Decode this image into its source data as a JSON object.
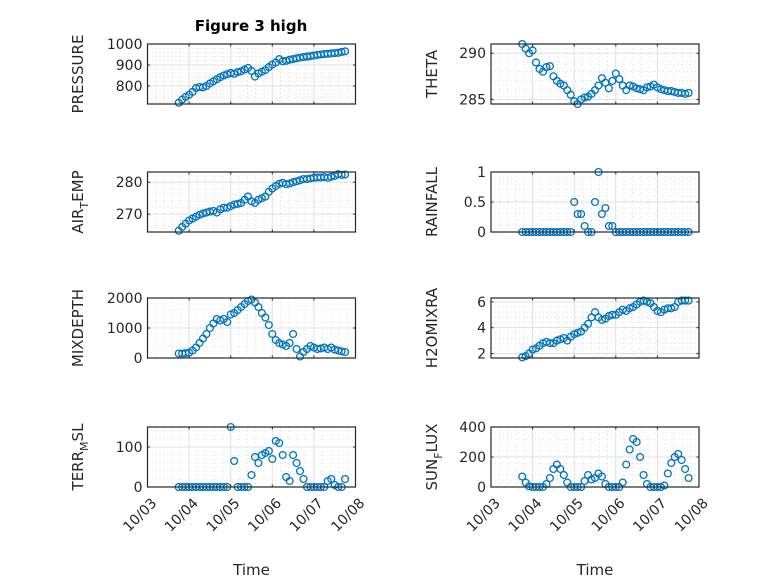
{
  "figure_title": "Figure 3 high",
  "colors": {
    "marker": "#0072BD",
    "axis": "#262626",
    "grid_major": "#dfdfdf",
    "grid_minor": "#c8c8c8"
  },
  "chart_data": [
    {
      "type": "scatter",
      "id": "pressure",
      "ylabel": {
        "main": "PRESSURE",
        "sub": "",
        "rest": ""
      },
      "title": "Figure 3 high",
      "ylim": [
        714,
        1000
      ],
      "yticks": [
        800,
        900,
        1000
      ],
      "ytick_labels": [
        "800",
        "900",
        "1000"
      ],
      "xlabel": "",
      "x_range_days": [
        0.75,
        4.75
      ],
      "values": [
        720,
        735,
        748,
        758,
        772,
        790,
        795,
        793,
        800,
        812,
        822,
        832,
        842,
        850,
        856,
        862,
        858,
        866,
        870,
        878,
        886,
        872,
        845,
        860,
        868,
        876,
        890,
        902,
        912,
        928,
        918,
        920,
        925,
        928,
        932,
        935,
        938,
        940,
        942,
        945,
        948,
        950,
        952,
        953,
        955,
        957,
        958,
        962,
        965
      ]
    },
    {
      "type": "scatter",
      "id": "theta",
      "ylabel": {
        "main": "THETA",
        "sub": "",
        "rest": ""
      },
      "ylim": [
        284.5,
        291
      ],
      "yticks": [
        285,
        290
      ],
      "ytick_labels": [
        "285",
        "290"
      ],
      "xlabel": "",
      "x_range_days": [
        0.75,
        4.75
      ],
      "values": [
        291,
        290.5,
        290,
        290.3,
        289,
        288.3,
        288,
        288.5,
        288.6,
        287.5,
        287,
        286.7,
        286.5,
        286,
        285.5,
        284.8,
        284.5,
        285,
        285.2,
        285.3,
        285.6,
        286,
        286.5,
        287.3,
        286.8,
        286.2,
        287,
        287.8,
        287.2,
        286.5,
        286,
        286.5,
        286.4,
        286.2,
        286.1,
        286,
        286.3,
        286.4,
        286.6,
        286.3,
        286.1,
        286,
        285.9,
        285.9,
        285.8,
        285.7,
        285.7,
        285.6,
        285.7
      ]
    },
    {
      "type": "scatter",
      "id": "air_temp",
      "ylabel": {
        "main": "AIR",
        "sub": "T",
        "rest": "EMP"
      },
      "ylim": [
        264.4,
        283.2
      ],
      "yticks": [
        270,
        280
      ],
      "ytick_labels": [
        "270",
        "280"
      ],
      "xlabel": "",
      "x_range_days": [
        0.75,
        4.75
      ],
      "values": [
        264.8,
        266,
        267,
        268,
        268.6,
        269.2,
        269.8,
        270.2,
        270.5,
        270.8,
        271,
        270.5,
        271.5,
        272,
        272,
        272.5,
        273,
        273.2,
        273.5,
        274.5,
        275.5,
        274,
        273.5,
        274.5,
        275,
        275.5,
        277,
        278,
        278.8,
        279.5,
        279.8,
        279.4,
        279.6,
        280,
        280.3,
        280.6,
        281,
        281,
        281.2,
        281.4,
        281.5,
        281.5,
        281.6,
        281.4,
        281.7,
        282,
        282.5,
        282.3,
        282.4
      ]
    },
    {
      "type": "scatter",
      "id": "rainfall",
      "ylabel": {
        "main": "RAINFALL",
        "sub": "",
        "rest": ""
      },
      "ylim": [
        0,
        1
      ],
      "yticks": [
        0,
        0.5,
        1
      ],
      "ytick_labels": [
        "0",
        "0.5",
        "1"
      ],
      "xlabel": "",
      "x_range_days": [
        0.75,
        4.75
      ],
      "values": [
        0,
        0,
        0,
        0,
        0,
        0,
        0,
        0,
        0,
        0,
        0,
        0,
        0,
        0,
        0,
        0.5,
        0.3,
        0.3,
        0.1,
        0,
        0,
        0.5,
        1.0,
        0.3,
        0.4,
        0.1,
        0.1,
        0,
        0,
        0,
        0,
        0,
        0,
        0,
        0,
        0,
        0,
        0,
        0,
        0,
        0,
        0,
        0,
        0,
        0,
        0,
        0,
        0,
        0
      ]
    },
    {
      "type": "scatter",
      "id": "mixdepth",
      "ylabel": {
        "main": "MIXDEPTH",
        "sub": "",
        "rest": ""
      },
      "ylim": [
        0,
        2000
      ],
      "yticks": [
        0,
        1000,
        2000
      ],
      "ytick_labels": [
        "0",
        "1000",
        "2000"
      ],
      "xlabel": "",
      "x_range_days": [
        0.75,
        4.75
      ],
      "values": [
        150,
        150,
        160,
        180,
        250,
        350,
        500,
        650,
        800,
        1000,
        1150,
        1300,
        1250,
        1300,
        1200,
        1450,
        1500,
        1600,
        1700,
        1800,
        1900,
        1950,
        1850,
        1700,
        1500,
        1350,
        1100,
        800,
        600,
        500,
        450,
        400,
        500,
        800,
        300,
        50,
        200,
        300,
        400,
        350,
        300,
        320,
        350,
        300,
        350,
        280,
        250,
        220,
        200
      ]
    },
    {
      "type": "scatter",
      "id": "h2omixra",
      "ylabel": {
        "main": "H2OMIXRA",
        "sub": "",
        "rest": ""
      },
      "ylim": [
        1.65,
        6.3
      ],
      "yticks": [
        2,
        4,
        6
      ],
      "ytick_labels": [
        "2",
        "4",
        "6"
      ],
      "xlabel": "",
      "x_range_days": [
        0.75,
        4.75
      ],
      "values": [
        1.7,
        1.8,
        2.0,
        2.3,
        2.4,
        2.6,
        2.8,
        2.9,
        2.8,
        2.8,
        3.0,
        3.1,
        3.2,
        3.0,
        3.3,
        3.5,
        3.6,
        3.7,
        4.0,
        4.3,
        4.8,
        5.2,
        4.8,
        4.6,
        4.7,
        4.9,
        5.0,
        5.0,
        5.2,
        5.4,
        5.3,
        5.5,
        5.6,
        5.8,
        6.0,
        6.1,
        6.0,
        5.9,
        5.6,
        5.3,
        5.2,
        5.4,
        5.5,
        5.5,
        5.6,
        6.0,
        6.1,
        6.1,
        6.1
      ]
    },
    {
      "type": "scatter",
      "id": "terr_msl",
      "ylabel": {
        "main": "TERR",
        "sub": "M",
        "rest": "SL"
      },
      "ylim": [
        0,
        150
      ],
      "yticks": [
        0,
        100
      ],
      "ytick_labels": [
        "0",
        "100"
      ],
      "xlabel": "Time",
      "x_range_days": [
        0.75,
        4.75
      ],
      "values": [
        0,
        0,
        0,
        0,
        0,
        0,
        0,
        0,
        0,
        0,
        0,
        0,
        0,
        0,
        0,
        150,
        65,
        0,
        0,
        0,
        0,
        30,
        75,
        60,
        80,
        85,
        90,
        70,
        115,
        110,
        80,
        25,
        15,
        80,
        60,
        40,
        20,
        0,
        0,
        0,
        0,
        0,
        0,
        15,
        20,
        5,
        0,
        0,
        20
      ]
    },
    {
      "type": "scatter",
      "id": "sun_flux",
      "ylabel": {
        "main": "SUN",
        "sub": "F",
        "rest": "LUX"
      },
      "ylim": [
        0,
        400
      ],
      "yticks": [
        0,
        200,
        400
      ],
      "ytick_labels": [
        "0",
        "200",
        "400"
      ],
      "xlabel": "Time",
      "x_range_days": [
        0.75,
        4.75
      ],
      "values": [
        70,
        30,
        5,
        0,
        0,
        0,
        0,
        20,
        60,
        120,
        150,
        120,
        80,
        30,
        0,
        0,
        0,
        0,
        40,
        80,
        50,
        60,
        90,
        70,
        20,
        0,
        0,
        0,
        0,
        30,
        150,
        250,
        320,
        300,
        200,
        80,
        20,
        0,
        0,
        0,
        0,
        10,
        90,
        160,
        200,
        220,
        180,
        120,
        60
      ]
    }
  ],
  "x_axis": {
    "xlim_days": [
      0,
      5
    ],
    "tick_labels": [
      "10/03",
      "10/04",
      "10/05",
      "10/06",
      "10/07",
      "10/08"
    ]
  }
}
